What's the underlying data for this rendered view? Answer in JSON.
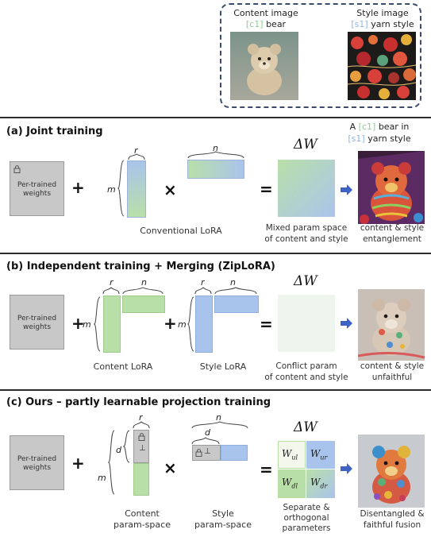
{
  "header": {
    "content_title": "Content image",
    "content_token": "[c1]",
    "content_word": "bear",
    "style_title": "Style image",
    "style_token": "[s1]",
    "style_word": "yarn style"
  },
  "prompt": {
    "line1_pre": "A",
    "line1_token": "[c1]",
    "line1_post": "bear in",
    "line2_token": "[s1]",
    "line2_post": "yarn style"
  },
  "section_a": {
    "title": "(a)  Joint  training",
    "weights_label": "Per-trained weights",
    "r": "r",
    "m": "m",
    "n": "n",
    "plus": "+",
    "times": "×",
    "equals": "=",
    "delta_w": "ΔW",
    "lora_label": "Conventional LoRA",
    "mixed_label_1": "Mixed param space",
    "mixed_label_2": "of content and style",
    "result_label_1": "content & style",
    "result_label_2": "entanglement"
  },
  "section_b": {
    "title": "(b)  Independent  training + Merging  (ZipLoRA)",
    "weights_label": "Per-trained weights",
    "r": "r",
    "n": "n",
    "m": "m",
    "plus": "+",
    "equals": "=",
    "delta_w": "ΔW",
    "content_lora": "Content LoRA",
    "style_lora": "Style LoRA",
    "conflict_label_1": "Conflict param",
    "conflict_label_2": "of content and style",
    "result_label_1": "content & style",
    "result_label_2": "unfaithful"
  },
  "section_c": {
    "title": "(c)  Ours – partly learnable projection training",
    "weights_label": "Per-trained weights",
    "r": "r",
    "d": "d",
    "m": "m",
    "n": "n",
    "perp": "⊥",
    "plus": "+",
    "times": "×",
    "equals": "=",
    "delta_w": "ΔW",
    "content_space_1": "Content",
    "content_space_2": "param-space",
    "style_space_1": "Style",
    "style_space_2": "param-space",
    "w_ul": "W",
    "w_ul_sub": "ul",
    "w_ur": "W",
    "w_ur_sub": "ur",
    "w_dl": "W",
    "w_dl_sub": "dl",
    "w_dr": "W",
    "w_dr_sub": "dr",
    "sep_1": "Separate &",
    "sep_2": "orthogonal",
    "sep_3": "parameters",
    "result_label_1": "Disentangled &",
    "result_label_2": "faithful fusion"
  },
  "colors": {
    "content_green": "#b9dfa8",
    "style_blue": "#a9c4ec",
    "frozen_gray": "#c8c8c8",
    "arrow_blue": "#3f63c4",
    "dashed_border": "#3d4a6b"
  },
  "icons": [
    "lock-icon",
    "right-arrow-icon",
    "brace-icon"
  ]
}
